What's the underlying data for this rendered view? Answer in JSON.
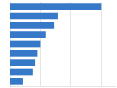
{
  "chart_data": {
    "type": "bar",
    "orientation": "horizontal",
    "categories": [
      null,
      null,
      null,
      null,
      null,
      null,
      null,
      null,
      null
    ],
    "values": [
      1200,
      630,
      580,
      470,
      400,
      360,
      330,
      300,
      170
    ],
    "color": "#3579c8",
    "xlim": [
      0,
      1380
    ],
    "xticks": [
      400,
      800,
      1200
    ],
    "grid": true,
    "tick_labels": false
  }
}
